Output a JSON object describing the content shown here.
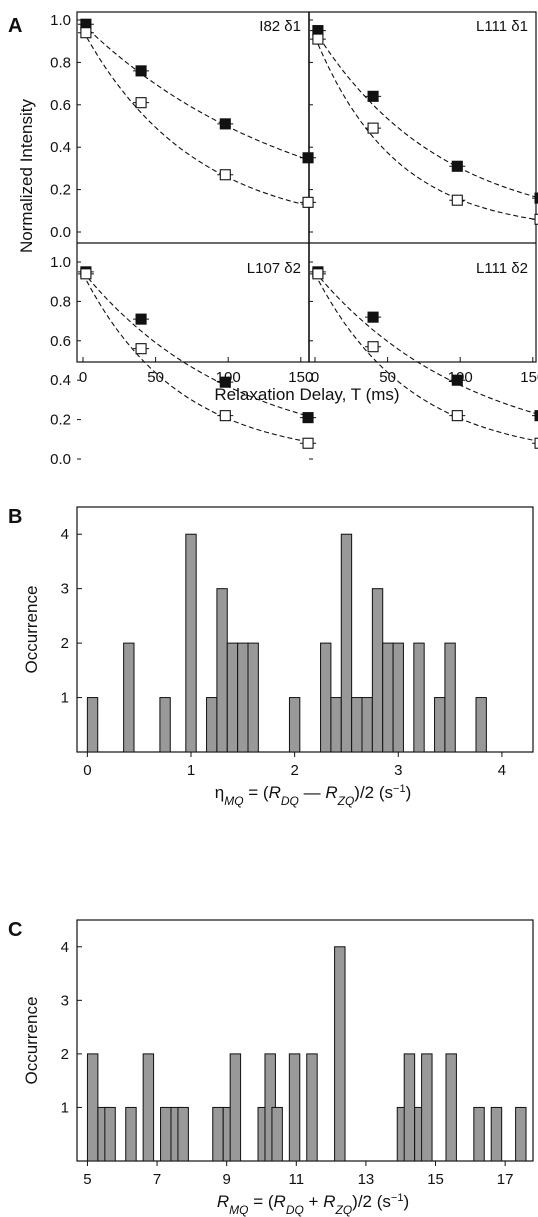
{
  "figure": {
    "panel_labels": [
      "A",
      "B",
      "C"
    ]
  },
  "chart_data": [
    {
      "type": "scatter",
      "panel": "A",
      "ylabel": "Normalized Intensity",
      "xlabel": "Relaxation Delay, T (ms)",
      "xlim": [
        0,
        200
      ],
      "ylim": [
        0,
        1.0
      ],
      "xticks": [
        "0",
        "50",
        "100",
        "150"
      ],
      "yticks": [
        "0.0",
        "0.2",
        "0.4",
        "0.6",
        "0.8",
        "1.0"
      ],
      "marker_colors": {
        "filled": "#111111",
        "open": "#ffffff"
      },
      "subplots": [
        {
          "title": "I82 δ1",
          "series": [
            {
              "marker": "filled",
              "x": [
                2,
                40,
                98,
                155
              ],
              "y": [
                0.98,
                0.76,
                0.51,
                0.35
              ],
              "fit_rate": 0.0068,
              "fit_top": 0.98
            },
            {
              "marker": "open",
              "x": [
                2,
                40,
                98,
                155
              ],
              "y": [
                0.94,
                0.61,
                0.27,
                0.14
              ],
              "fit_rate": 0.0131,
              "fit_top": 0.95
            }
          ]
        },
        {
          "title": "L111 δ1",
          "series": [
            {
              "marker": "filled",
              "x": [
                2,
                40,
                98,
                155
              ],
              "y": [
                0.95,
                0.64,
                0.31,
                0.16
              ],
              "fit_rate": 0.0115,
              "fit_top": 0.95
            },
            {
              "marker": "open",
              "x": [
                2,
                40,
                98,
                155
              ],
              "y": [
                0.91,
                0.49,
                0.15,
                0.06
              ],
              "fit_rate": 0.018,
              "fit_top": 0.92
            }
          ]
        },
        {
          "title": "L107 δ2",
          "series": [
            {
              "marker": "filled",
              "x": [
                2,
                40,
                98,
                155
              ],
              "y": [
                0.95,
                0.71,
                0.39,
                0.21
              ],
              "fit_rate": 0.0095,
              "fit_top": 0.95
            },
            {
              "marker": "open",
              "x": [
                2,
                40,
                98,
                155
              ],
              "y": [
                0.94,
                0.56,
                0.22,
                0.08
              ],
              "fit_rate": 0.0153,
              "fit_top": 0.94
            }
          ]
        },
        {
          "title": "L111 δ2",
          "series": [
            {
              "marker": "filled",
              "x": [
                2,
                40,
                98,
                155
              ],
              "y": [
                0.95,
                0.72,
                0.4,
                0.22
              ],
              "fit_rate": 0.0093,
              "fit_top": 0.95
            },
            {
              "marker": "open",
              "x": [
                2,
                40,
                98,
                155
              ],
              "y": [
                0.94,
                0.57,
                0.22,
                0.08
              ],
              "fit_rate": 0.0152,
              "fit_top": 0.94
            }
          ]
        }
      ]
    },
    {
      "type": "bar",
      "panel": "B",
      "ylabel": "Occurrence",
      "xlabel": "η_MQ = (R_DQ — R_ZQ)/2 (s^-1)",
      "xlim": [
        -0.1,
        4.3
      ],
      "ylim": [
        0,
        4.5
      ],
      "xticks": [
        "0",
        "1",
        "2",
        "3",
        "4"
      ],
      "yticks": [
        "1",
        "2",
        "3",
        "4"
      ],
      "bar_color": "#999999",
      "bin_width": 0.1,
      "bin_left": [
        0.0,
        0.35,
        0.7,
        0.95,
        1.15,
        1.25,
        1.35,
        1.45,
        1.55,
        1.95,
        2.25,
        2.35,
        2.45,
        2.55,
        2.65,
        2.75,
        2.85,
        2.95,
        3.15,
        3.35,
        3.45,
        3.75
      ],
      "counts": [
        1,
        2,
        1,
        4,
        1,
        3,
        2,
        2,
        2,
        1,
        2,
        1,
        4,
        1,
        1,
        3,
        2,
        2,
        2,
        1,
        2,
        1
      ]
    },
    {
      "type": "bar",
      "panel": "C",
      "ylabel": "Occurrence",
      "xlabel": "R_MQ = (R_DQ + R_ZQ)/2 (s^-1)",
      "xlim": [
        4.7,
        17.8
      ],
      "ylim": [
        0,
        4.5
      ],
      "xticks": [
        "5",
        "7",
        "9",
        "11",
        "13",
        "15",
        "17"
      ],
      "yticks": [
        "1",
        "2",
        "3",
        "4"
      ],
      "bar_color": "#999999",
      "bin_width": 0.3,
      "bin_left": [
        5.0,
        5.3,
        5.5,
        6.1,
        6.6,
        7.1,
        7.4,
        7.6,
        8.6,
        8.9,
        9.1,
        9.9,
        10.1,
        10.3,
        10.8,
        11.3,
        12.1,
        13.9,
        14.1,
        14.4,
        14.6,
        15.3,
        16.1,
        16.6,
        17.3
      ],
      "counts": [
        2,
        1,
        1,
        1,
        2,
        1,
        1,
        1,
        1,
        1,
        2,
        1,
        2,
        1,
        2,
        2,
        4,
        1,
        2,
        1,
        2,
        2,
        1,
        1,
        1
      ]
    }
  ]
}
